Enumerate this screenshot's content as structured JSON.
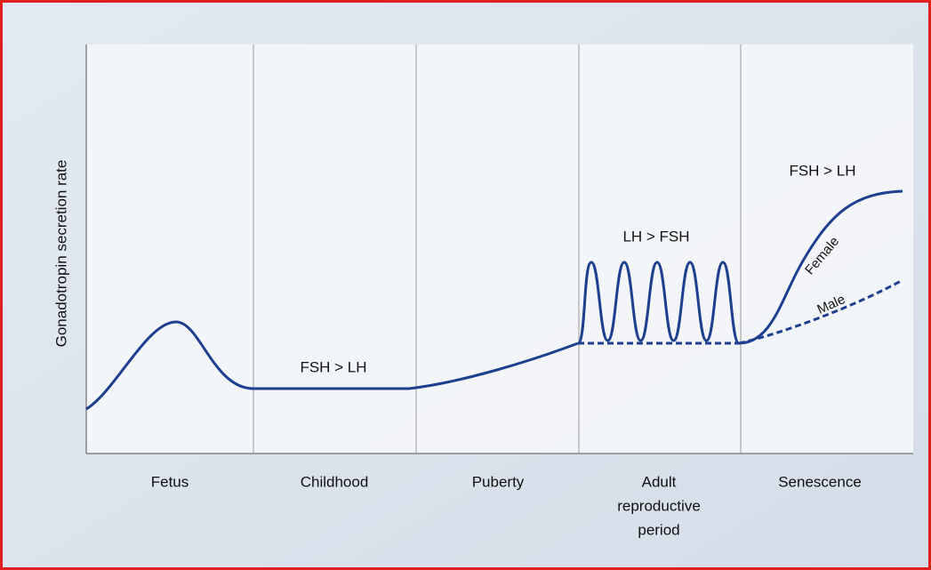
{
  "y_axis_label": "Gonadotropin secretion rate",
  "periods": [
    [
      "Fetus"
    ],
    [
      "Childhood"
    ],
    [
      "Puberty"
    ],
    [
      "Adult",
      "reproductive",
      "period"
    ],
    [
      "Senescence"
    ]
  ],
  "annotations": {
    "childhood": "FSH > LH",
    "adult": "LH > FSH",
    "senescence": "FSH > LH",
    "female": "Female",
    "male": "Male"
  }
}
